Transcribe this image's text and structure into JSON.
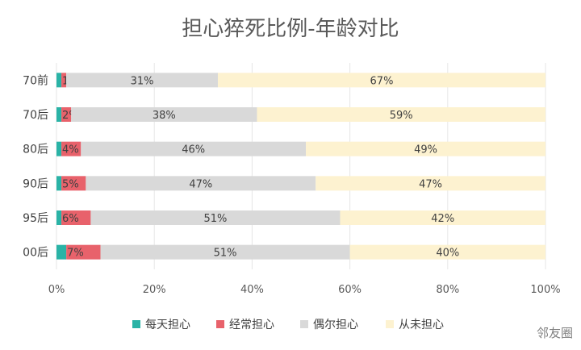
{
  "chart_data": {
    "type": "bar",
    "orientation": "horizontal",
    "stacked": "percent",
    "title": "担心猝死比例-年龄对比",
    "categories": [
      "70前",
      "70后",
      "80后",
      "90后",
      "95后",
      "00后"
    ],
    "series": [
      {
        "name": "每天担心",
        "color": "#2ab3a6",
        "values": [
          1,
          1,
          1,
          1,
          1,
          2
        ]
      },
      {
        "name": "经常担心",
        "color": "#e8626b",
        "values": [
          1,
          2,
          4,
          5,
          6,
          7
        ]
      },
      {
        "name": "偶尔担心",
        "color": "#d9d9d9",
        "values": [
          31,
          38,
          46,
          47,
          51,
          51
        ]
      },
      {
        "name": "从未担心",
        "color": "#fdf2d0",
        "values": [
          67,
          59,
          49,
          47,
          42,
          40
        ]
      }
    ],
    "data_labels": [
      [
        "",
        "1%",
        "31%",
        "67%"
      ],
      [
        "",
        "2%",
        "38%",
        "59%"
      ],
      [
        "",
        "4%",
        "46%",
        "49%"
      ],
      [
        "",
        "5%",
        "47%",
        "47%"
      ],
      [
        "",
        "6%",
        "51%",
        "42%"
      ],
      [
        "",
        "7%",
        "51%",
        "40%"
      ]
    ],
    "x_ticks": [
      "0%",
      "20%",
      "40%",
      "60%",
      "80%",
      "100%"
    ],
    "xlim": [
      0,
      100
    ],
    "grid": true,
    "legend": "bottom"
  },
  "watermark": "邻友圈"
}
